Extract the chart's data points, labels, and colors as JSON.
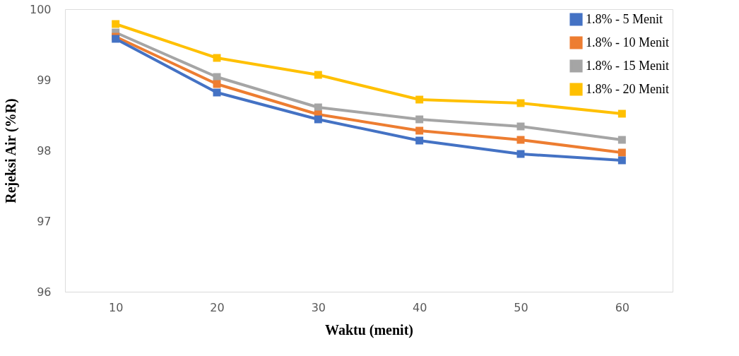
{
  "chart_data": {
    "type": "line",
    "xlabel": "Waktu (menit)",
    "ylabel": "Rejeksi Air (%R)",
    "categories": [
      "10",
      "20",
      "30",
      "40",
      "50",
      "60"
    ],
    "series": [
      {
        "name": "1.8% - 5 Menit",
        "color": "#4472c4",
        "values": [
          99.58,
          98.82,
          98.44,
          98.14,
          97.95,
          97.86
        ]
      },
      {
        "name": "1.8% - 10 Menit",
        "color": "#ed7d31",
        "values": [
          99.61,
          98.94,
          98.51,
          98.28,
          98.15,
          97.97
        ]
      },
      {
        "name": "1.8% - 15 Menit",
        "color": "#a5a5a5",
        "values": [
          99.67,
          99.04,
          98.61,
          98.44,
          98.34,
          98.15
        ]
      },
      {
        "name": "1.8% - 20 Menit",
        "color": "#ffc000",
        "values": [
          99.79,
          99.31,
          99.07,
          98.72,
          98.67,
          98.52
        ]
      }
    ],
    "ylim": [
      96,
      100
    ],
    "yticks": [
      96,
      97,
      98,
      99,
      100
    ],
    "grid": false,
    "legend": "top right",
    "marker": "square",
    "line_style": "solid"
  }
}
